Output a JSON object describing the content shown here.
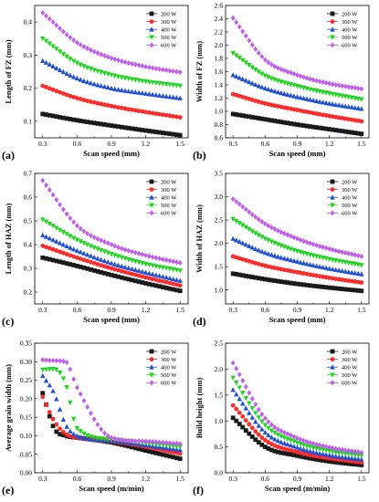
{
  "colors": {
    "200 W": "#1a1a1a",
    "300 W": "#ff2a2a",
    "400 W": "#1f4fd6",
    "500 W": "#1fd61f",
    "600 W": "#c25bf0"
  },
  "markers": {
    "200 W": "square",
    "300 W": "circle",
    "400 W": "triangle-up",
    "500 W": "triangle-down",
    "600 W": "diamond"
  },
  "chart_data": [
    {
      "panel": "(a)",
      "type": "scatter",
      "xlabel": "Scan speed (mm)",
      "ylabel": "Length of FZ (mm)",
      "xlim": [
        0.23,
        1.57
      ],
      "ylim": [
        0.05,
        0.45
      ],
      "xticks": [
        "0.3",
        "0.6",
        "0.9",
        "1.2",
        "1.5"
      ],
      "yticks": [
        "0.1",
        "0.2",
        "0.3",
        "0.4"
      ],
      "legend": "top-right",
      "series": [
        {
          "name": "200 W",
          "x": [
            0.3,
            0.6,
            0.9,
            1.2,
            1.5
          ],
          "y": [
            0.122,
            0.103,
            0.087,
            0.072,
            0.058
          ]
        },
        {
          "name": "300 W",
          "x": [
            0.3,
            0.6,
            0.9,
            1.2,
            1.5
          ],
          "y": [
            0.207,
            0.17,
            0.146,
            0.128,
            0.112
          ]
        },
        {
          "name": "400 W",
          "x": [
            0.3,
            0.6,
            0.9,
            1.2,
            1.5
          ],
          "y": [
            0.283,
            0.23,
            0.2,
            0.184,
            0.17
          ]
        },
        {
          "name": "500 W",
          "x": [
            0.3,
            0.6,
            0.9,
            1.2,
            1.5
          ],
          "y": [
            0.35,
            0.276,
            0.24,
            0.22,
            0.207
          ]
        },
        {
          "name": "600 W",
          "x": [
            0.3,
            0.6,
            0.9,
            1.2,
            1.5
          ],
          "y": [
            0.428,
            0.338,
            0.291,
            0.265,
            0.248
          ]
        }
      ]
    },
    {
      "panel": "(b)",
      "type": "scatter",
      "xlabel": "Scan speed (mm)",
      "ylabel": "Width of FZ (mm)",
      "xlim": [
        0.23,
        1.57
      ],
      "ylim": [
        0.6,
        2.6
      ],
      "xticks": [
        "0.3",
        "0.6",
        "0.9",
        "1.2",
        "1.5"
      ],
      "yticks": [
        "0.6",
        "0.8",
        "1.0",
        "1.2",
        "1.4",
        "1.6",
        "1.8",
        "2.0",
        "2.2",
        "2.4",
        "2.6"
      ],
      "legend": "top-right",
      "series": [
        {
          "name": "200 W",
          "x": [
            0.3,
            0.6,
            0.9,
            1.2,
            1.5
          ],
          "y": [
            0.96,
            0.88,
            0.8,
            0.73,
            0.66
          ]
        },
        {
          "name": "300 W",
          "x": [
            0.3,
            0.6,
            0.9,
            1.2,
            1.5
          ],
          "y": [
            1.26,
            1.12,
            1.02,
            0.93,
            0.85
          ]
        },
        {
          "name": "400 W",
          "x": [
            0.3,
            0.6,
            0.9,
            1.2,
            1.5
          ],
          "y": [
            1.55,
            1.35,
            1.22,
            1.12,
            1.04
          ]
        },
        {
          "name": "500 W",
          "x": [
            0.3,
            0.6,
            0.9,
            1.2,
            1.5
          ],
          "y": [
            1.88,
            1.54,
            1.38,
            1.27,
            1.18
          ]
        },
        {
          "name": "600 W",
          "x": [
            0.3,
            0.6,
            0.9,
            1.2,
            1.5
          ],
          "y": [
            2.41,
            1.78,
            1.55,
            1.42,
            1.34
          ]
        }
      ]
    },
    {
      "panel": "(c)",
      "type": "scatter",
      "xlabel": "Scan speed (mm)",
      "ylabel": "Length of HAZ (mm)",
      "xlim": [
        0.23,
        1.57
      ],
      "ylim": [
        0.15,
        0.7
      ],
      "xticks": [
        "0.3",
        "0.6",
        "0.9",
        "1.2",
        "1.5"
      ],
      "yticks": [
        "0.2",
        "0.3",
        "0.4",
        "0.5",
        "0.6",
        "0.7"
      ],
      "legend": "top-right",
      "series": [
        {
          "name": "200 W",
          "x": [
            0.3,
            0.6,
            0.9,
            1.2,
            1.5
          ],
          "y": [
            0.345,
            0.31,
            0.272,
            0.237,
            0.205
          ]
        },
        {
          "name": "300 W",
          "x": [
            0.3,
            0.6,
            0.9,
            1.2,
            1.5
          ],
          "y": [
            0.395,
            0.345,
            0.3,
            0.262,
            0.228
          ]
        },
        {
          "name": "400 W",
          "x": [
            0.3,
            0.6,
            0.9,
            1.2,
            1.5
          ],
          "y": [
            0.44,
            0.375,
            0.322,
            0.283,
            0.248
          ]
        },
        {
          "name": "500 W",
          "x": [
            0.3,
            0.6,
            0.9,
            1.2,
            1.5
          ],
          "y": [
            0.505,
            0.42,
            0.36,
            0.318,
            0.29
          ]
        },
        {
          "name": "600 W",
          "x": [
            0.3,
            0.6,
            0.9,
            1.2,
            1.5
          ],
          "y": [
            0.67,
            0.48,
            0.4,
            0.355,
            0.323
          ]
        }
      ]
    },
    {
      "panel": "(d)",
      "type": "scatter",
      "xlabel": "Scan speed (mm)",
      "ylabel": "Width of HAZ (mm)",
      "xlim": [
        0.23,
        1.57
      ],
      "ylim": [
        0.7,
        3.5
      ],
      "xticks": [
        "0.3",
        "0.6",
        "0.9",
        "1.2",
        "1.5"
      ],
      "yticks": [
        "1.0",
        "1.5",
        "2.0",
        "2.5",
        "3.0",
        "3.5"
      ],
      "legend": "top-right",
      "series": [
        {
          "name": "200 W",
          "x": [
            0.3,
            0.6,
            0.9,
            1.2,
            1.5
          ],
          "y": [
            1.35,
            1.23,
            1.13,
            1.05,
            0.98
          ]
        },
        {
          "name": "300 W",
          "x": [
            0.3,
            0.6,
            0.9,
            1.2,
            1.5
          ],
          "y": [
            1.72,
            1.52,
            1.38,
            1.26,
            1.16
          ]
        },
        {
          "name": "400 W",
          "x": [
            0.3,
            0.6,
            0.9,
            1.2,
            1.5
          ],
          "y": [
            2.1,
            1.8,
            1.61,
            1.46,
            1.34
          ]
        },
        {
          "name": "500 W",
          "x": [
            0.3,
            0.6,
            0.9,
            1.2,
            1.5
          ],
          "y": [
            2.52,
            2.1,
            1.83,
            1.66,
            1.53
          ]
        },
        {
          "name": "600 W",
          "x": [
            0.3,
            0.6,
            0.9,
            1.2,
            1.5
          ],
          "y": [
            2.95,
            2.42,
            2.1,
            1.88,
            1.72
          ]
        }
      ]
    },
    {
      "panel": "(e)",
      "type": "scatter",
      "xlabel": "Scan speed (m/min)",
      "ylabel": "Average grain width (mm)",
      "xlim": [
        0.23,
        1.57
      ],
      "ylim": [
        0.0,
        0.35
      ],
      "xticks": [
        "0.3",
        "0.6",
        "0.9",
        "1.2",
        "1.5"
      ],
      "yticks": [
        "0.00",
        "0.05",
        "0.10",
        "0.15",
        "0.20",
        "0.25",
        "0.30",
        "0.35"
      ],
      "legend": "top-right",
      "series": [
        {
          "name": "200 W",
          "x": [
            0.3,
            0.4,
            0.5,
            0.6,
            0.9,
            1.2,
            1.5
          ],
          "y": [
            0.215,
            0.12,
            0.1,
            0.095,
            0.082,
            0.06,
            0.038
          ]
        },
        {
          "name": "300 W",
          "x": [
            0.3,
            0.4,
            0.5,
            0.6,
            0.9,
            1.2,
            1.5
          ],
          "y": [
            0.205,
            0.14,
            0.105,
            0.095,
            0.085,
            0.07,
            0.052
          ]
        },
        {
          "name": "400 W",
          "x": [
            0.3,
            0.4,
            0.5,
            0.6,
            0.9,
            1.2,
            1.5
          ],
          "y": [
            0.262,
            0.215,
            0.13,
            0.1,
            0.087,
            0.075,
            0.062
          ]
        },
        {
          "name": "500 W",
          "x": [
            0.3,
            0.4,
            0.5,
            0.6,
            0.9,
            1.2,
            1.5
          ],
          "y": [
            0.278,
            0.28,
            0.24,
            0.12,
            0.09,
            0.08,
            0.07
          ]
        },
        {
          "name": "600 W",
          "x": [
            0.3,
            0.4,
            0.5,
            0.6,
            0.9,
            1.2,
            1.5
          ],
          "y": [
            0.305,
            0.303,
            0.3,
            0.23,
            0.095,
            0.085,
            0.078
          ]
        }
      ]
    },
    {
      "panel": "(f)",
      "type": "scatter",
      "xlabel": "Scan speed (m/min)",
      "ylabel": "Build height (mm)",
      "xlim": [
        0.23,
        1.57
      ],
      "ylim": [
        0.0,
        2.5
      ],
      "xticks": [
        "0.3",
        "0.6",
        "0.9",
        "1.2",
        "1.5"
      ],
      "yticks": [
        "0.0",
        "0.5",
        "1.0",
        "1.5",
        "2.0",
        "2.5"
      ],
      "legend": "top-right",
      "series": [
        {
          "name": "200 W",
          "x": [
            0.3,
            0.6,
            0.9,
            1.2,
            1.5
          ],
          "y": [
            1.06,
            0.5,
            0.33,
            0.22,
            0.15
          ]
        },
        {
          "name": "300 W",
          "x": [
            0.3,
            0.6,
            0.9,
            1.2,
            1.5
          ],
          "y": [
            1.3,
            0.63,
            0.4,
            0.28,
            0.2
          ]
        },
        {
          "name": "400 W",
          "x": [
            0.3,
            0.6,
            0.9,
            1.2,
            1.5
          ],
          "y": [
            1.6,
            0.78,
            0.49,
            0.34,
            0.26
          ]
        },
        {
          "name": "500 W",
          "x": [
            0.3,
            0.6,
            0.9,
            1.2,
            1.5
          ],
          "y": [
            1.83,
            0.92,
            0.58,
            0.42,
            0.33
          ]
        },
        {
          "name": "600 W",
          "x": [
            0.3,
            0.6,
            0.9,
            1.2,
            1.5
          ],
          "y": [
            2.12,
            1.05,
            0.67,
            0.49,
            0.39
          ]
        }
      ]
    }
  ]
}
